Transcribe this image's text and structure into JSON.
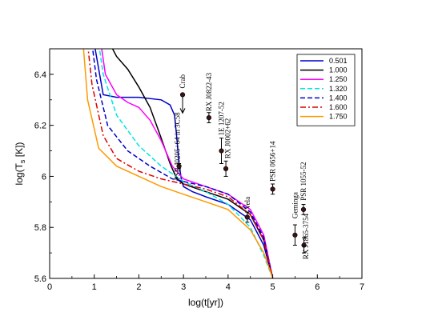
{
  "chart_data": {
    "type": "line",
    "xlabel": "log(t[yr])",
    "ylabel": "log(T_s [K])",
    "xlim": [
      0,
      7
    ],
    "ylim": [
      5.6,
      6.5
    ],
    "xticks": [
      0,
      1,
      2,
      3,
      4,
      5,
      6,
      7
    ],
    "yticks": [
      5.6,
      5.8,
      6.0,
      6.2,
      6.4
    ],
    "ytick_labels": [
      "5.6",
      "5.8",
      "6",
      "6.2",
      "6.4"
    ],
    "grid": false,
    "legend_placement": "top-right",
    "series": [
      {
        "name": "0.501",
        "color": "#0000cc",
        "dash": "solid",
        "x": [
          1.0,
          1.2,
          1.5,
          2.0,
          2.5,
          2.7,
          2.8,
          2.85,
          2.9,
          2.95,
          3.0,
          3.2,
          3.5,
          4.0,
          4.5,
          4.8,
          5.0
        ],
        "y": [
          6.52,
          6.32,
          6.31,
          6.31,
          6.3,
          6.28,
          6.24,
          6.15,
          6.05,
          5.99,
          5.96,
          5.94,
          5.92,
          5.89,
          5.83,
          5.73,
          5.6
        ]
      },
      {
        "name": "1.000",
        "color": "#000000",
        "dash": "solid",
        "x": [
          1.35,
          1.5,
          1.75,
          2.0,
          2.25,
          2.5,
          2.7,
          2.85,
          3.0,
          3.5,
          4.0,
          4.5,
          4.8,
          5.0
        ],
        "y": [
          6.52,
          6.47,
          6.42,
          6.35,
          6.27,
          6.15,
          6.05,
          5.99,
          5.97,
          5.94,
          5.91,
          5.85,
          5.75,
          5.6
        ]
      },
      {
        "name": "1.250",
        "color": "#ff00ff",
        "dash": "solid",
        "x": [
          1.15,
          1.25,
          1.5,
          1.75,
          2.0,
          2.25,
          2.5,
          2.75,
          3.0,
          3.5,
          4.0,
          4.5,
          4.8,
          5.0
        ],
        "y": [
          6.52,
          6.4,
          6.32,
          6.29,
          6.27,
          6.22,
          6.14,
          6.04,
          5.99,
          5.96,
          5.93,
          5.87,
          5.77,
          5.6
        ]
      },
      {
        "name": "1.320",
        "color": "#00e5e5",
        "dash": "dashed",
        "x": [
          1.1,
          1.2,
          1.5,
          2.0,
          2.5,
          3.0,
          3.5,
          4.0,
          4.5,
          4.8,
          5.0
        ],
        "y": [
          6.52,
          6.4,
          6.24,
          6.12,
          6.04,
          5.98,
          5.94,
          5.89,
          5.8,
          5.69,
          5.6
        ]
      },
      {
        "name": "1.400",
        "color": "#0000cc",
        "dash": "dashed",
        "x": [
          0.95,
          1.05,
          1.3,
          1.75,
          2.25,
          2.75,
          3.0,
          3.5,
          4.0,
          4.5,
          4.8,
          5.0
        ],
        "y": [
          6.52,
          6.38,
          6.2,
          6.1,
          6.04,
          5.99,
          5.98,
          5.96,
          5.93,
          5.86,
          5.76,
          5.6
        ]
      },
      {
        "name": "1.600",
        "color": "#dd0000",
        "dash": "dashdot",
        "x": [
          0.85,
          0.95,
          1.2,
          1.5,
          2.0,
          2.5,
          3.0,
          3.5,
          4.0,
          4.5,
          4.8,
          5.0
        ],
        "y": [
          6.52,
          6.36,
          6.16,
          6.07,
          6.02,
          5.99,
          5.97,
          5.95,
          5.92,
          5.85,
          5.75,
          5.6
        ]
      },
      {
        "name": "1.750",
        "color": "#ff9900",
        "dash": "solid",
        "x": [
          0.75,
          0.85,
          1.1,
          1.5,
          2.0,
          2.5,
          3.0,
          3.5,
          4.0,
          4.5,
          4.8,
          5.0
        ],
        "y": [
          6.52,
          6.3,
          6.11,
          6.04,
          6.0,
          5.96,
          5.93,
          5.9,
          5.87,
          5.79,
          5.7,
          5.6
        ]
      }
    ],
    "points": [
      {
        "label": "Crab",
        "x": 2.98,
        "y": 6.32,
        "yerr": 0,
        "upper_limit": true
      },
      {
        "label": "PSR J0205+64 in 3C58",
        "x": 2.9,
        "y": 6.04,
        "yerr": 0.01,
        "upper_limit": false
      },
      {
        "label": "RX J0822-43",
        "x": 3.57,
        "y": 6.23,
        "yerr": 0.02,
        "upper_limit": false
      },
      {
        "label": "1E 1207-52",
        "x": 3.85,
        "y": 6.1,
        "yerr": 0.05,
        "upper_limit": false
      },
      {
        "label": "RX J0002+62",
        "x": 3.95,
        "y": 6.03,
        "yerr": 0.03,
        "upper_limit": false
      },
      {
        "label": "Vela",
        "x": 4.43,
        "y": 5.84,
        "yerr": 0.02,
        "upper_limit": false
      },
      {
        "label": "PSR 0656+14",
        "x": 5.0,
        "y": 5.95,
        "yerr": 0.02,
        "upper_limit": false
      },
      {
        "label": "Geminga",
        "x": 5.5,
        "y": 5.77,
        "yerr": 0.04,
        "upper_limit": false
      },
      {
        "label": "PSR 1055-52",
        "x": 5.69,
        "y": 5.87,
        "yerr": 0.02,
        "upper_limit": false
      },
      {
        "label": "RX J1865-3754",
        "x": 5.7,
        "y": 5.73,
        "yerr": 0.03,
        "upper_limit": false
      }
    ]
  }
}
